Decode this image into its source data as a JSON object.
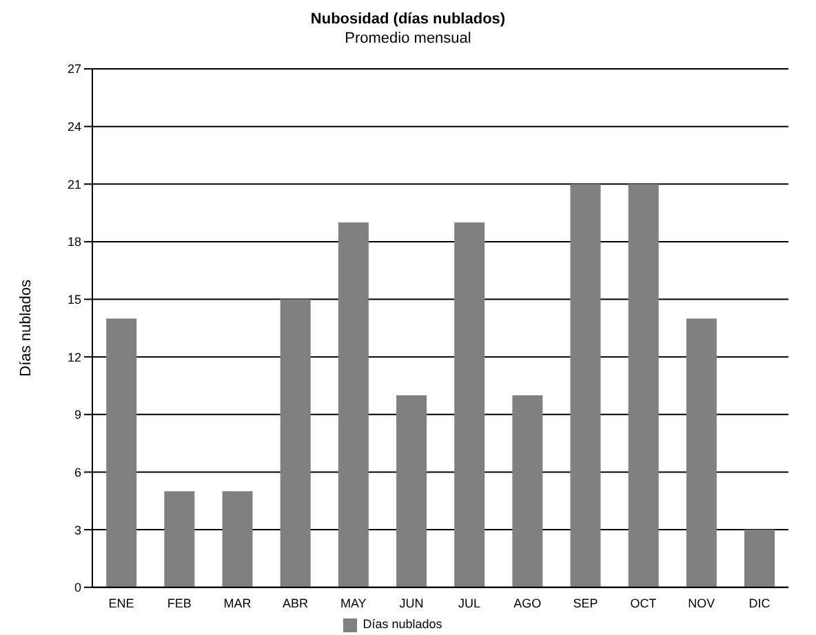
{
  "chart_data": {
    "type": "bar",
    "title": "Nubosidad (días nublados)",
    "subtitle": "Promedio mensual",
    "ylabel": "Días nublados",
    "categories": [
      "ENE",
      "FEB",
      "MAR",
      "ABR",
      "MAY",
      "JUN",
      "JUL",
      "AGO",
      "SEP",
      "OCT",
      "NOV",
      "DIC"
    ],
    "series": [
      {
        "name": "Días nublados",
        "color": "#808080",
        "values": [
          14,
          5,
          5,
          15,
          19,
          10,
          19,
          10,
          21,
          21,
          14,
          3
        ]
      }
    ],
    "ylim": [
      0,
      27
    ],
    "yticks": [
      0,
      3,
      6,
      9,
      12,
      15,
      18,
      21,
      24,
      27
    ],
    "grid": "y",
    "legend": "bottom"
  }
}
